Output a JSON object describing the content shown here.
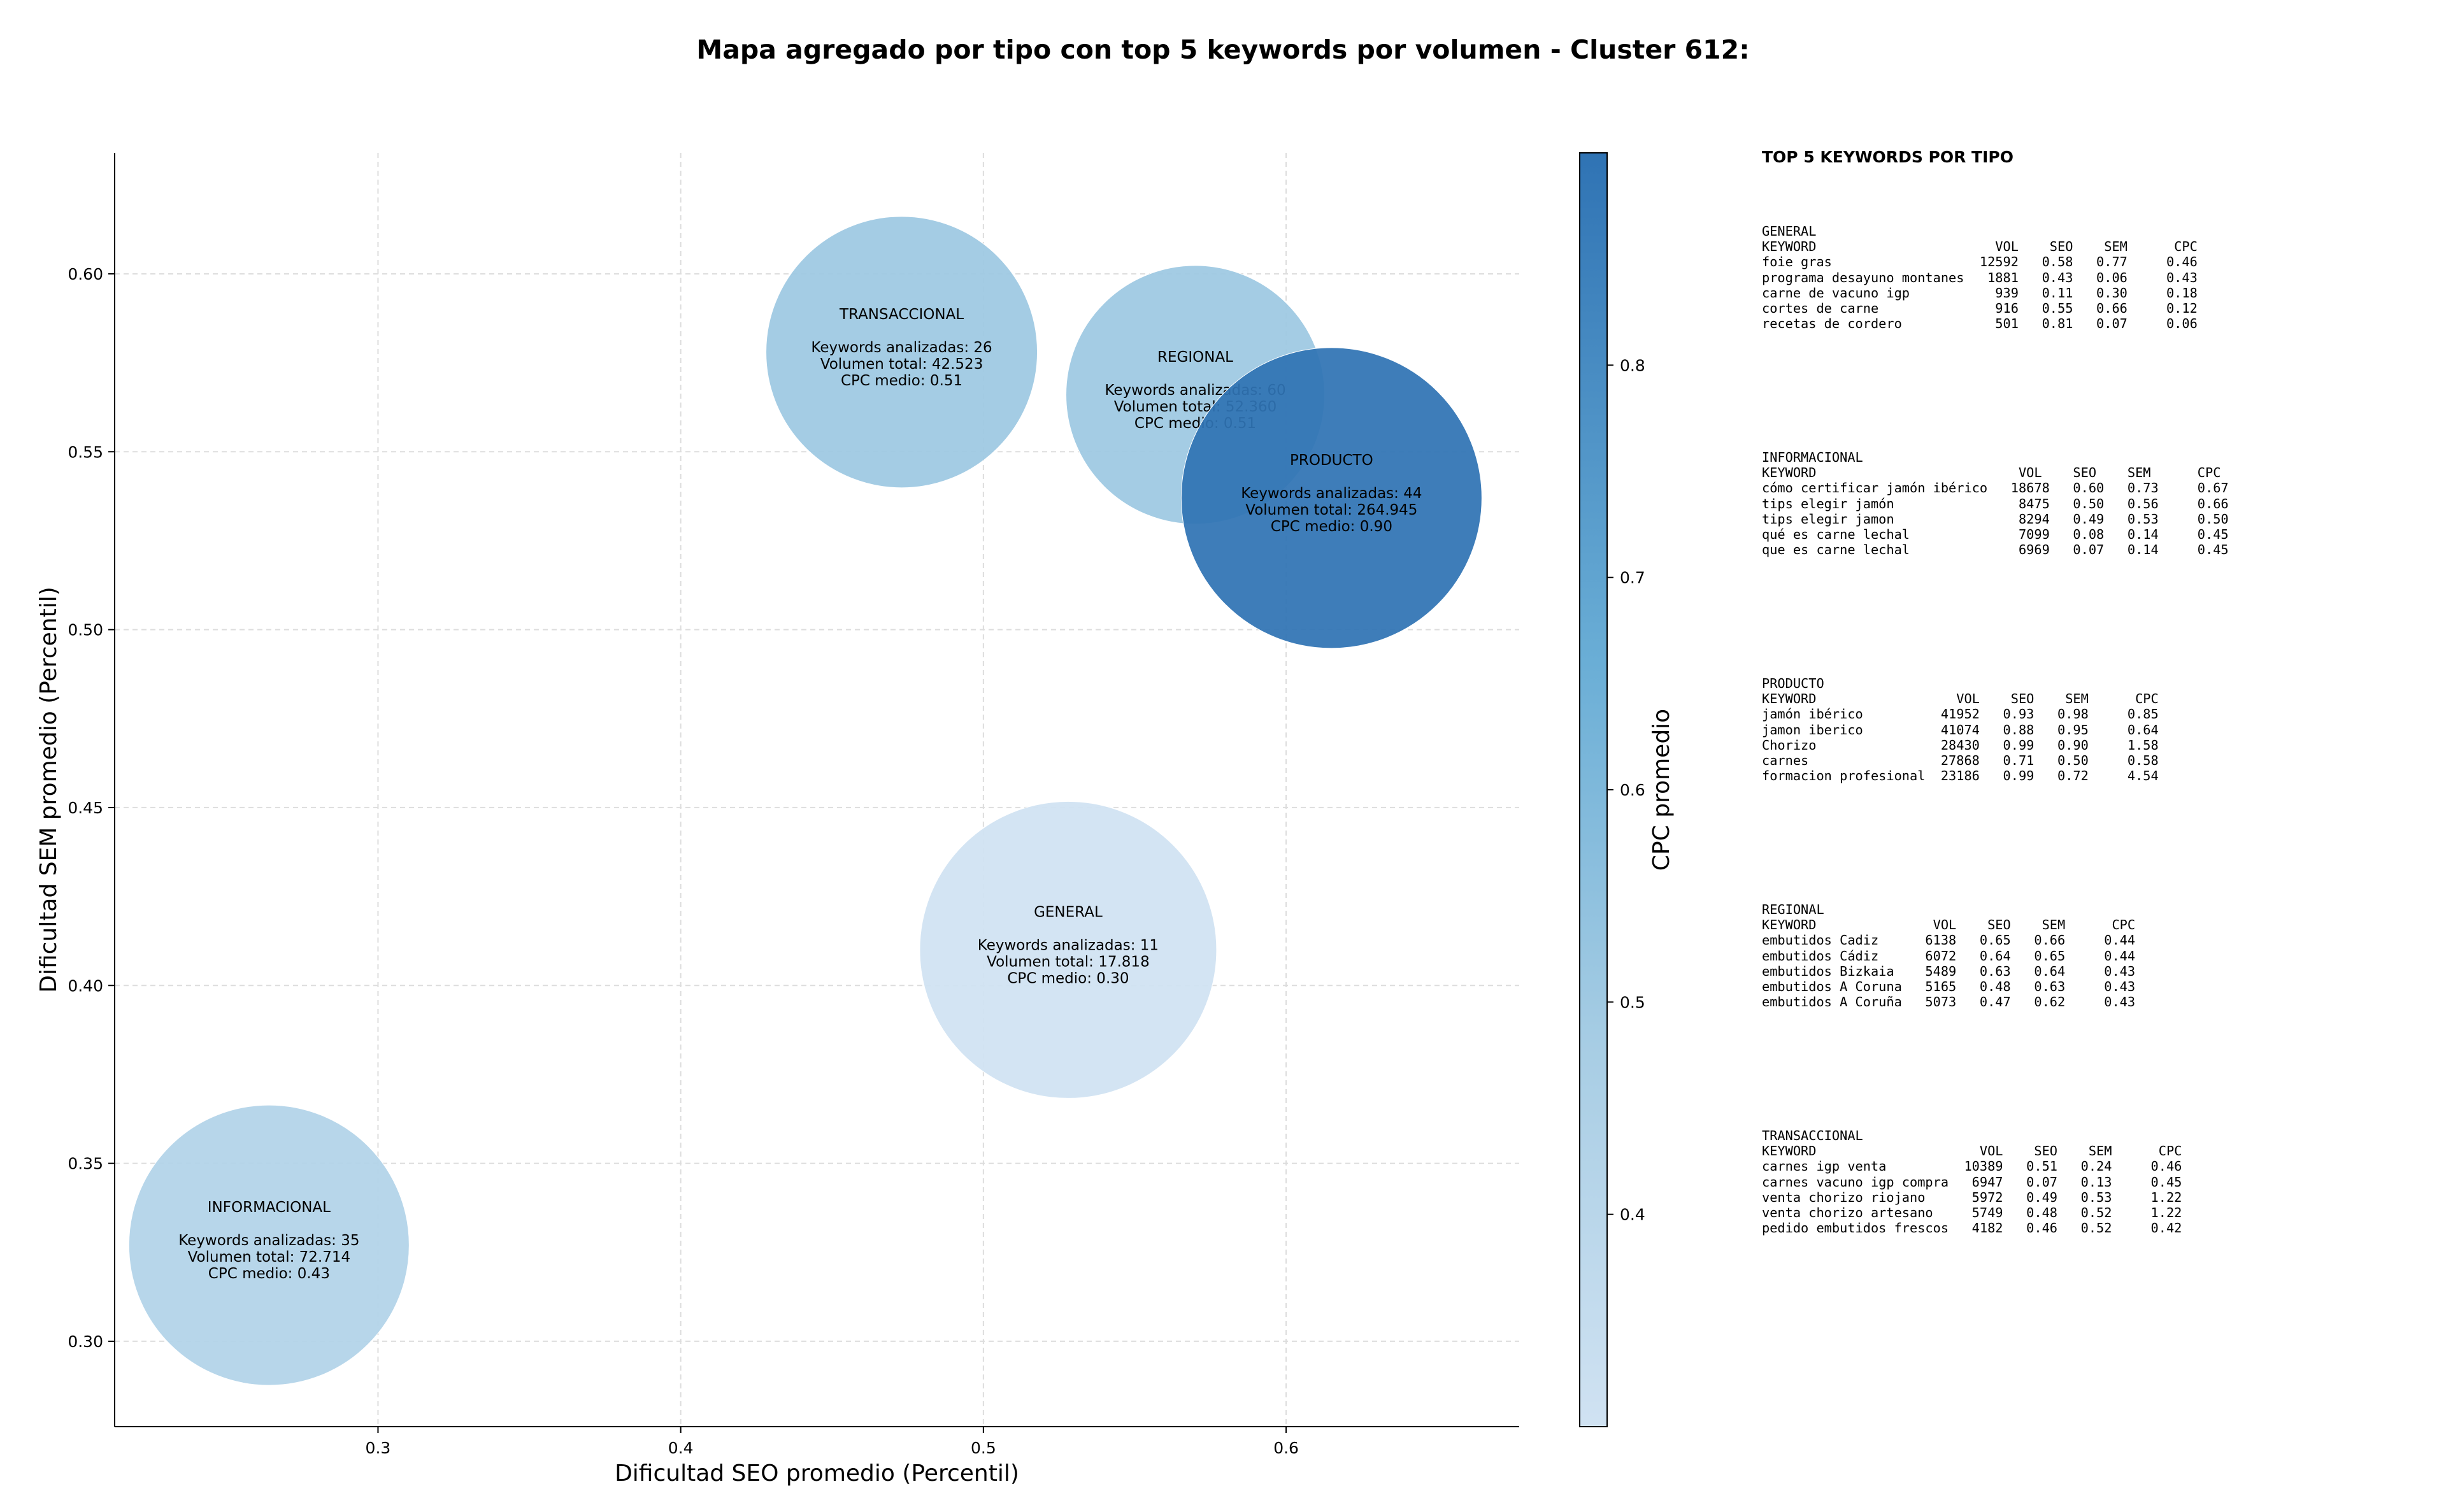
{
  "title": "Mapa agregado por tipo con top 5 keywords por volumen - Cluster 612:",
  "chart_data": {
    "type": "scatter",
    "title": "Mapa agregado por tipo con top 5 keywords por volumen - Cluster 612:",
    "xlabel": "Dificultad SEO promedio (Percentil)",
    "ylabel": "Dificultad SEM promedio (Percentil)",
    "xlim": [
      0.213,
      0.677
    ],
    "ylim": [
      0.276,
      0.634
    ],
    "x_ticks": [
      "0.3",
      "0.4",
      "0.5",
      "0.6"
    ],
    "x_tick_values": [
      0.3,
      0.4,
      0.5,
      0.6
    ],
    "y_ticks": [
      "0.30",
      "0.35",
      "0.40",
      "0.45",
      "0.50",
      "0.55",
      "0.60"
    ],
    "y_tick_values": [
      0.3,
      0.35,
      0.4,
      0.45,
      0.5,
      0.55,
      0.6
    ],
    "grid": true,
    "bubble_size": "Volumen total",
    "color_by": "CPC medio",
    "colorbar": {
      "label": "CPC promedio",
      "range": [
        0.3,
        0.9
      ],
      "ticks": [
        "0.4",
        "0.5",
        "0.6",
        "0.7",
        "0.8"
      ],
      "tick_values": [
        0.4,
        0.5,
        0.6,
        0.7,
        0.8
      ],
      "colors": [
        "#d0e2f2",
        "#a7cde4",
        "#6aaed6",
        "#2f73b4"
      ]
    },
    "points": [
      {
        "tipo": "GENERAL",
        "seo": 0.528,
        "sem": 0.41,
        "keywords": "Keywords analizadas: 11",
        "volumen": "Volumen total: 17.818",
        "cpc": "CPC medio: 0.30",
        "cpc_value": 0.3
      },
      {
        "tipo": "INFORMACIONAL",
        "seo": 0.264,
        "sem": 0.327,
        "keywords": "Keywords analizadas: 35",
        "volumen": "Volumen total: 72.714",
        "cpc": "CPC medio: 0.43",
        "cpc_value": 0.43
      },
      {
        "tipo": "TRANSACCIONAL",
        "seo": 0.473,
        "sem": 0.578,
        "keywords": "Keywords analizadas: 26",
        "volumen": "Volumen total: 42.523",
        "cpc": "CPC medio: 0.51",
        "cpc_value": 0.51
      },
      {
        "tipo": "REGIONAL",
        "seo": 0.57,
        "sem": 0.566,
        "keywords": "Keywords analizadas: 60",
        "volumen": "Volumen total: 52.360",
        "cpc": "CPC medio: 0.51",
        "cpc_value": 0.51
      },
      {
        "tipo": "PRODUCTO",
        "seo": 0.615,
        "sem": 0.537,
        "keywords": "Keywords analizadas: 44",
        "volumen": "Volumen total: 264.945",
        "cpc": "CPC medio: 0.90",
        "cpc_value": 0.9
      }
    ]
  },
  "tables": {
    "heading": "TOP 5 KEYWORDS POR TIPO",
    "blocks": [
      {
        "tipo": "GENERAL",
        "text": "GENERAL\nKEYWORD                       VOL    SEO    SEM      CPC\nfoie gras                   12592   0.58   0.77     0.46\nprograma desayuno montanes   1881   0.43   0.06     0.43\ncarne de vacuno igp           939   0.11   0.30     0.18\ncortes de carne               916   0.55   0.66     0.12\nrecetas de cordero            501   0.81   0.07     0.06"
      },
      {
        "tipo": "INFORMACIONAL",
        "text": "INFORMACIONAL\nKEYWORD                          VOL    SEO    SEM      CPC\ncómo certificar jamón ibérico   18678   0.60   0.73     0.67\ntips elegir jamón                8475   0.50   0.56     0.66\ntips elegir jamon                8294   0.49   0.53     0.50\nqué es carne lechal              7099   0.08   0.14     0.45\nque es carne lechal              6969   0.07   0.14     0.45"
      },
      {
        "tipo": "PRODUCTO",
        "text": "PRODUCTO\nKEYWORD                  VOL    SEO    SEM      CPC\njamón ibérico          41952   0.93   0.98     0.85\njamon iberico          41074   0.88   0.95     0.64\nChorizo                28430   0.99   0.90     1.58\ncarnes                 27868   0.71   0.50     0.58\nformacion profesional  23186   0.99   0.72     4.54"
      },
      {
        "tipo": "REGIONAL",
        "text": "REGIONAL\nKEYWORD               VOL    SEO    SEM      CPC\nembutidos Cadiz      6138   0.65   0.66     0.44\nembutidos Cádiz      6072   0.64   0.65     0.44\nembutidos Bizkaia    5489   0.63   0.64     0.43\nembutidos A Coruna   5165   0.48   0.63     0.43\nembutidos A Coruña   5073   0.47   0.62     0.43"
      },
      {
        "tipo": "TRANSACCIONAL",
        "text": "TRANSACCIONAL\nKEYWORD                     VOL    SEO    SEM      CPC\ncarnes igp venta          10389   0.51   0.24     0.46\ncarnes vacuno igp compra   6947   0.07   0.13     0.45\nventa chorizo riojano      5972   0.49   0.53     1.22\nventa chorizo artesano     5749   0.48   0.52     1.22\npedido embutidos frescos   4182   0.46   0.52     0.42"
      }
    ]
  }
}
